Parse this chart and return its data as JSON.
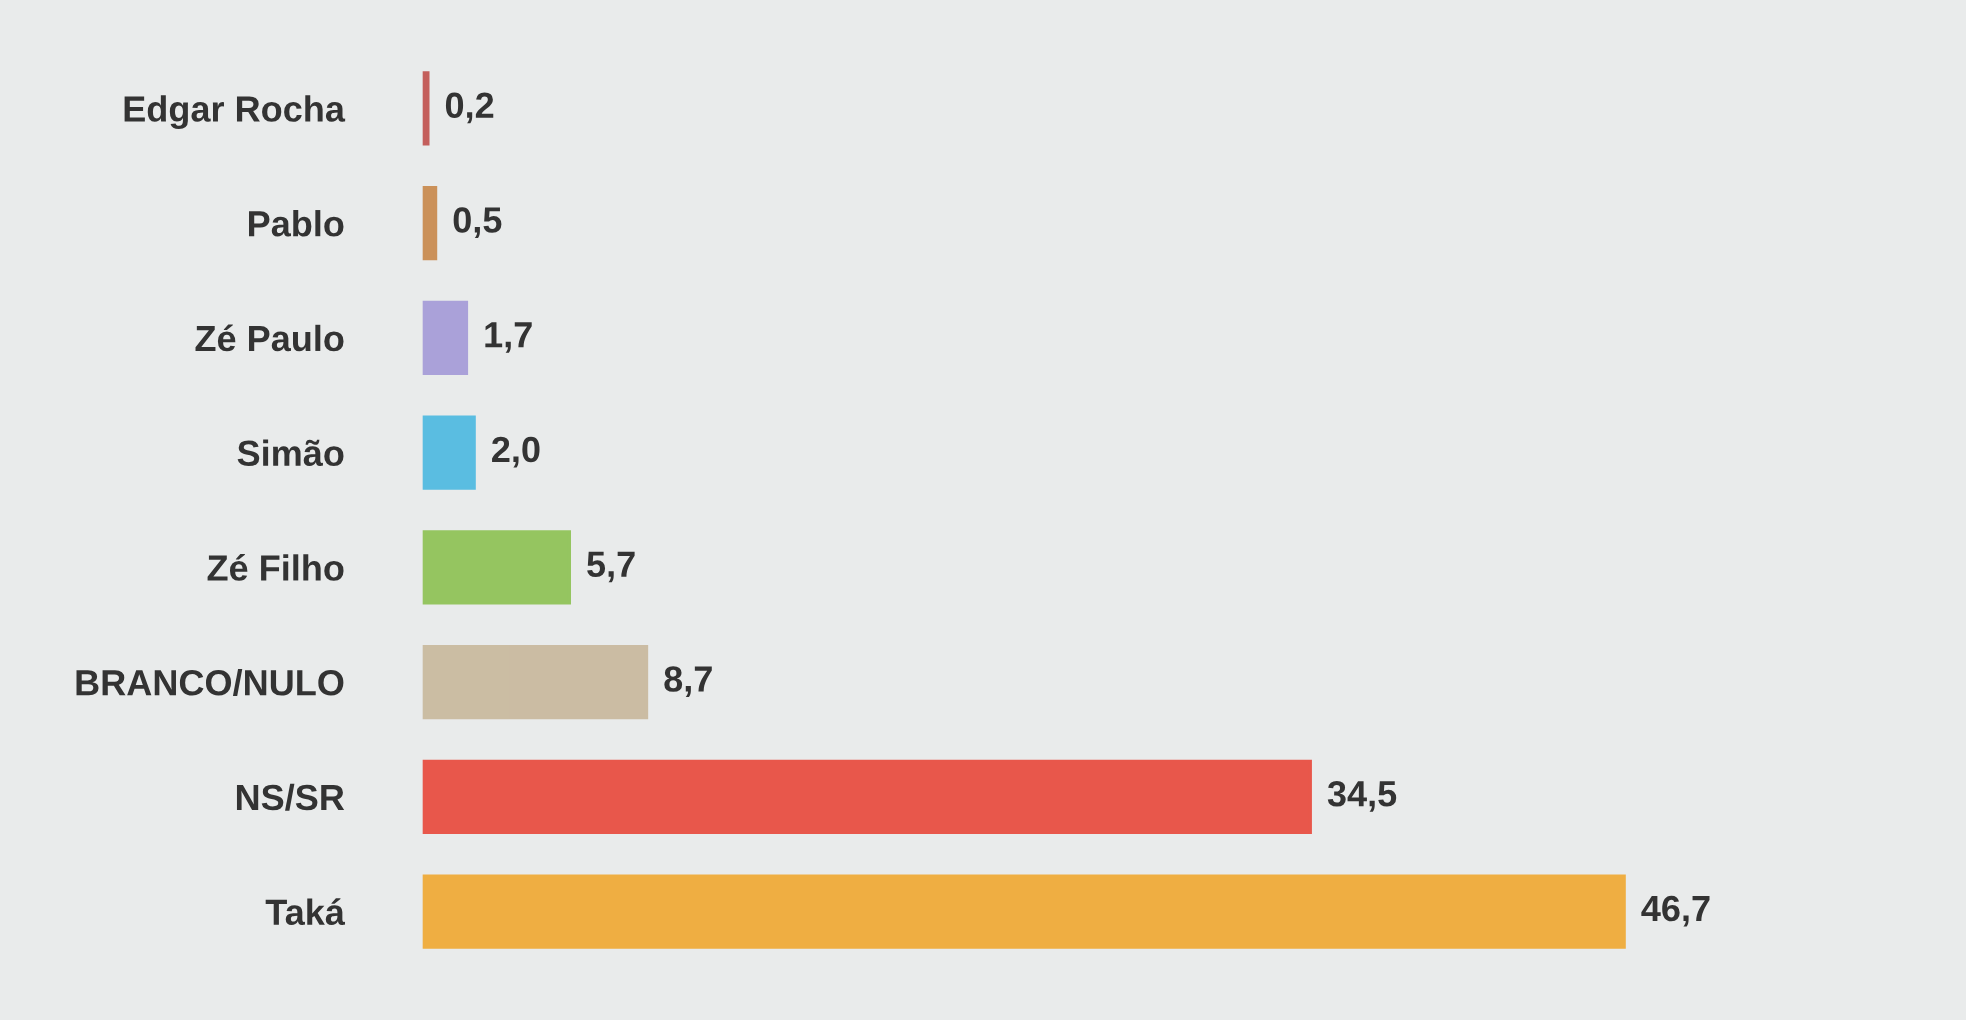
{
  "chart_data": {
    "type": "bar",
    "orientation": "horizontal",
    "categories": [
      "Edgar Rocha",
      "Pablo",
      "Zé Paulo",
      "Simão",
      "Zé Filho",
      "BRANCO/NULO",
      "NS/SR",
      "Taká"
    ],
    "values": [
      0.2,
      0.5,
      1.7,
      2.0,
      5.7,
      8.7,
      34.5,
      46.7
    ],
    "colors": [
      "#c0504d",
      "#c8884a",
      "#a49ad8",
      "#4bb8e0",
      "#8cc152",
      "#c8b89c",
      "#e8483a",
      "#f0a830"
    ],
    "value_labels": [
      "0,2",
      "0,5",
      "1,7",
      "2,0",
      "5,7",
      "8,7",
      "34,5",
      "46,7"
    ],
    "grid": false,
    "legend": false
  }
}
